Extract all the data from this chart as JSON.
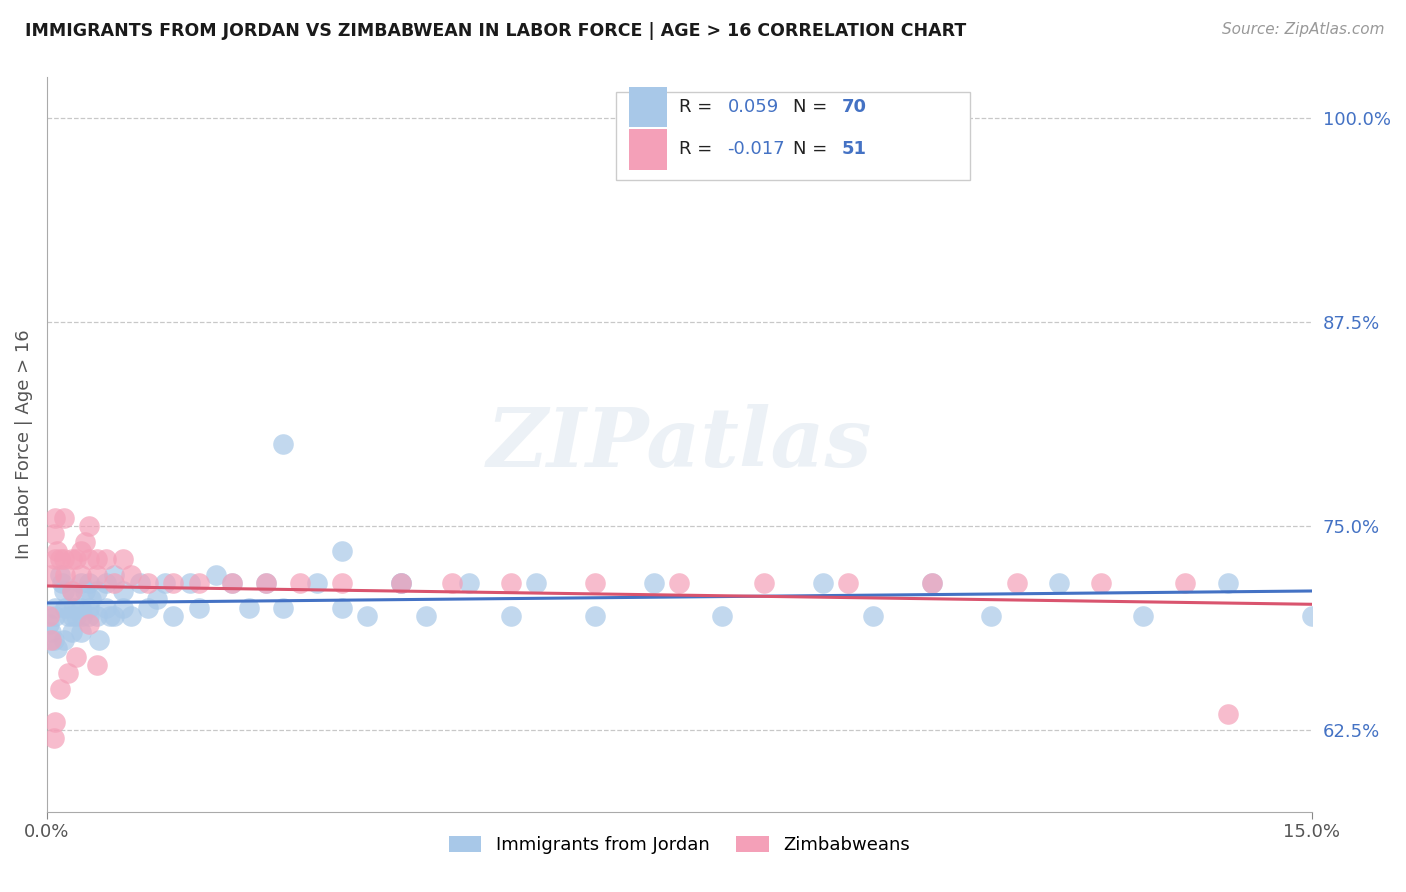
{
  "title": "IMMIGRANTS FROM JORDAN VS ZIMBABWEAN IN LABOR FORCE | AGE > 16 CORRELATION CHART",
  "source": "Source: ZipAtlas.com",
  "ylabel": "In Labor Force | Age > 16",
  "xlim": [
    0.0,
    0.15
  ],
  "ylim": [
    0.575,
    1.025
  ],
  "color_jordan": "#a8c8e8",
  "color_zimbabwe": "#f4a0b8",
  "color_jordan_line": "#4472c4",
  "color_zimbabwe_line": "#d9546e",
  "watermark": "ZIPatlas",
  "background_color": "#ffffff",
  "grid_color": "#c8c8c8",
  "jordan_scatter_x": [
    0.0003,
    0.0005,
    0.0008,
    0.001,
    0.001,
    0.0012,
    0.0015,
    0.0018,
    0.002,
    0.002,
    0.0022,
    0.0025,
    0.003,
    0.003,
    0.003,
    0.0032,
    0.0035,
    0.004,
    0.004,
    0.004,
    0.0042,
    0.0045,
    0.005,
    0.005,
    0.005,
    0.0052,
    0.006,
    0.006,
    0.0062,
    0.007,
    0.007,
    0.0075,
    0.008,
    0.008,
    0.009,
    0.009,
    0.01,
    0.011,
    0.012,
    0.013,
    0.014,
    0.015,
    0.017,
    0.018,
    0.02,
    0.022,
    0.024,
    0.026,
    0.028,
    0.032,
    0.035,
    0.038,
    0.042,
    0.045,
    0.05,
    0.055,
    0.058,
    0.065,
    0.072,
    0.08,
    0.092,
    0.098,
    0.105,
    0.112,
    0.12,
    0.13,
    0.14,
    0.15,
    0.028,
    0.035,
    0.042
  ],
  "jordan_scatter_y": [
    0.69,
    0.685,
    0.68,
    0.695,
    0.7,
    0.675,
    0.72,
    0.715,
    0.71,
    0.68,
    0.7,
    0.695,
    0.71,
    0.695,
    0.685,
    0.7,
    0.695,
    0.715,
    0.7,
    0.685,
    0.695,
    0.71,
    0.7,
    0.695,
    0.715,
    0.705,
    0.71,
    0.695,
    0.68,
    0.715,
    0.7,
    0.695,
    0.72,
    0.695,
    0.71,
    0.7,
    0.695,
    0.715,
    0.7,
    0.705,
    0.715,
    0.695,
    0.715,
    0.7,
    0.72,
    0.715,
    0.7,
    0.715,
    0.7,
    0.715,
    0.7,
    0.695,
    0.715,
    0.695,
    0.715,
    0.695,
    0.715,
    0.695,
    0.715,
    0.695,
    0.715,
    0.695,
    0.715,
    0.695,
    0.715,
    0.695,
    0.715,
    0.695,
    0.8,
    0.735,
    0.715
  ],
  "zimbabwe_scatter_x": [
    0.0003,
    0.0005,
    0.0005,
    0.0008,
    0.001,
    0.001,
    0.0012,
    0.0015,
    0.002,
    0.002,
    0.0022,
    0.003,
    0.003,
    0.0035,
    0.004,
    0.004,
    0.0045,
    0.005,
    0.005,
    0.006,
    0.006,
    0.007,
    0.008,
    0.009,
    0.01,
    0.012,
    0.015,
    0.018,
    0.022,
    0.026,
    0.03,
    0.035,
    0.042,
    0.048,
    0.055,
    0.065,
    0.075,
    0.085,
    0.095,
    0.105,
    0.115,
    0.125,
    0.135,
    0.005,
    0.006,
    0.0035,
    0.0025,
    0.0015,
    0.001,
    0.0008,
    0.14
  ],
  "zimbabwe_scatter_y": [
    0.695,
    0.68,
    0.72,
    0.745,
    0.73,
    0.755,
    0.735,
    0.73,
    0.755,
    0.73,
    0.72,
    0.73,
    0.71,
    0.73,
    0.72,
    0.735,
    0.74,
    0.75,
    0.73,
    0.73,
    0.72,
    0.73,
    0.715,
    0.73,
    0.72,
    0.715,
    0.715,
    0.715,
    0.715,
    0.715,
    0.715,
    0.715,
    0.715,
    0.715,
    0.715,
    0.715,
    0.715,
    0.715,
    0.715,
    0.715,
    0.715,
    0.715,
    0.715,
    0.69,
    0.665,
    0.67,
    0.66,
    0.65,
    0.63,
    0.62,
    0.635
  ],
  "ytick_positions": [
    0.625,
    0.75,
    0.875,
    1.0
  ],
  "ytick_labels": [
    "62.5%",
    "75.0%",
    "87.5%",
    "100.0%"
  ]
}
